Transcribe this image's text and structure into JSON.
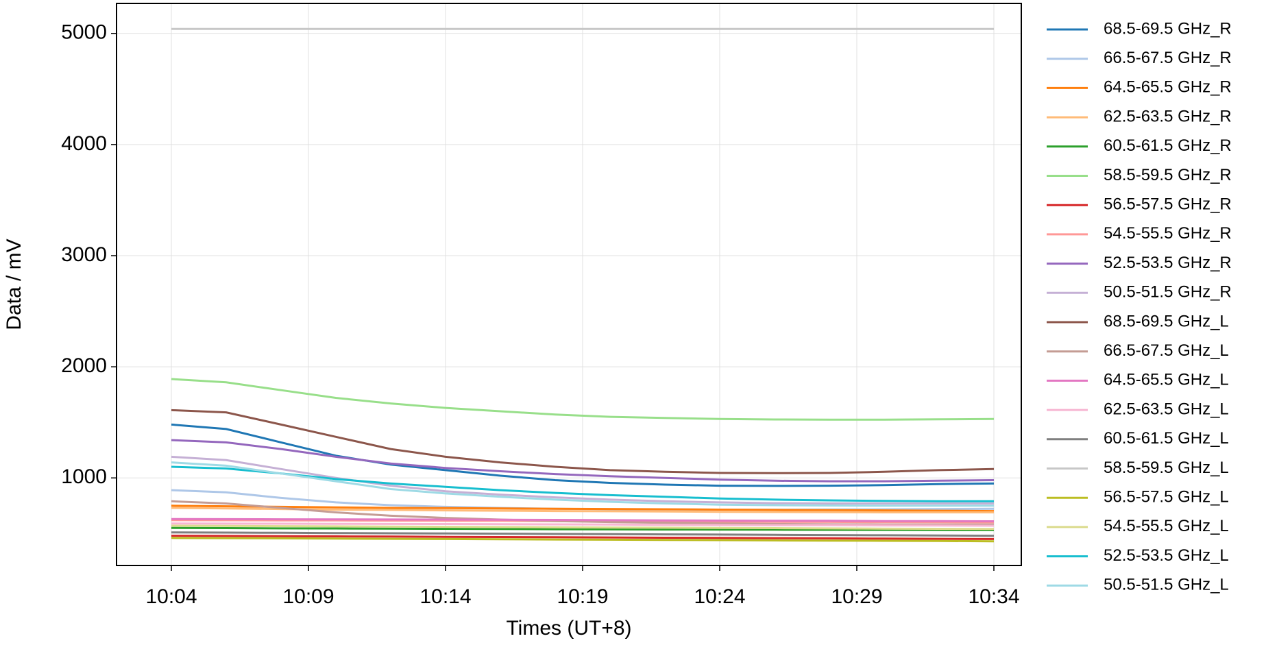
{
  "chart_data": {
    "type": "line",
    "xlabel": "Times (UT+8)",
    "ylabel": "Data / mV",
    "x": [
      "10:04",
      "10:06",
      "10:08",
      "10:10",
      "10:12",
      "10:14",
      "10:16",
      "10:18",
      "10:20",
      "10:22",
      "10:24",
      "10:26",
      "10:28",
      "10:30",
      "10:32",
      "10:34"
    ],
    "xlim": [
      "10:02",
      "10:35"
    ],
    "xticks": [
      "10:04",
      "10:09",
      "10:14",
      "10:19",
      "10:24",
      "10:29",
      "10:34"
    ],
    "ylim": [
      212,
      5270
    ],
    "yticks": [
      1000,
      2000,
      3000,
      4000,
      5000
    ],
    "grid": true,
    "legend": "outside right",
    "series": [
      {
        "name": "68.5-69.5 GHz_R",
        "color": "#1f77b4",
        "values": [
          1480,
          1440,
          1320,
          1200,
          1120,
          1070,
          1020,
          980,
          955,
          940,
          930,
          928,
          930,
          935,
          945,
          950
        ]
      },
      {
        "name": "66.5-67.5 GHz_R",
        "color": "#aec7e8",
        "values": [
          890,
          870,
          820,
          780,
          755,
          740,
          730,
          722,
          718,
          716,
          715,
          715,
          716,
          718,
          720,
          722
        ]
      },
      {
        "name": "64.5-65.5 GHz_R",
        "color": "#ff7f0e",
        "values": [
          750,
          745,
          740,
          735,
          730,
          728,
          725,
          722,
          720,
          718,
          715,
          712,
          710,
          708,
          705,
          702
        ]
      },
      {
        "name": "62.5-63.5 GHz_R",
        "color": "#ffbb78",
        "values": [
          730,
          725,
          720,
          715,
          712,
          708,
          705,
          702,
          700,
          698,
          695,
          693,
          692,
          690,
          690,
          690
        ]
      },
      {
        "name": "60.5-61.5 GHz_R",
        "color": "#2ca02c",
        "values": [
          550,
          548,
          546,
          545,
          543,
          542,
          540,
          538,
          537,
          536,
          535,
          534,
          533,
          532,
          531,
          530
        ]
      },
      {
        "name": "58.5-59.5 GHz_R",
        "color": "#98df8a",
        "values": [
          1890,
          1860,
          1790,
          1720,
          1670,
          1630,
          1600,
          1570,
          1550,
          1540,
          1530,
          1526,
          1524,
          1524,
          1527,
          1530
        ]
      },
      {
        "name": "56.5-57.5 GHz_R",
        "color": "#d62728",
        "values": [
          480,
          478,
          476,
          474,
          472,
          470,
          468,
          466,
          464,
          462,
          460,
          458,
          456,
          454,
          452,
          450
        ]
      },
      {
        "name": "54.5-55.5 GHz_R",
        "color": "#ff9896",
        "values": [
          620,
          619,
          618,
          617,
          616,
          615,
          614,
          612,
          610,
          608,
          606,
          605,
          604,
          602,
          601,
          600
        ]
      },
      {
        "name": "52.5-53.5 GHz_R",
        "color": "#9467bd",
        "values": [
          1340,
          1320,
          1260,
          1190,
          1130,
          1090,
          1060,
          1035,
          1015,
          1000,
          985,
          975,
          970,
          970,
          975,
          980
        ]
      },
      {
        "name": "50.5-51.5 GHz_R",
        "color": "#c5b0d5",
        "values": [
          1190,
          1160,
          1080,
          1000,
          930,
          880,
          850,
          825,
          805,
          790,
          780,
          773,
          770,
          770,
          770,
          770
        ]
      },
      {
        "name": "68.5-69.5 GHz_L",
        "color": "#8c564b",
        "values": [
          1610,
          1590,
          1480,
          1370,
          1260,
          1190,
          1140,
          1100,
          1070,
          1055,
          1045,
          1043,
          1045,
          1055,
          1070,
          1080
        ]
      },
      {
        "name": "66.5-67.5 GHz_L",
        "color": "#c49c94",
        "values": [
          790,
          770,
          730,
          690,
          660,
          640,
          625,
          612,
          603,
          596,
          590,
          586,
          583,
          581,
          580,
          580
        ]
      },
      {
        "name": "64.5-65.5 GHz_L",
        "color": "#e377c2",
        "values": [
          630,
          629,
          628,
          627,
          626,
          625,
          624,
          622,
          620,
          618,
          616,
          615,
          614,
          612,
          611,
          610
        ]
      },
      {
        "name": "62.5-63.5 GHz_L",
        "color": "#f7b6d2",
        "values": [
          590,
          589,
          588,
          587,
          586,
          585,
          584,
          582,
          580,
          578,
          576,
          575,
          574,
          572,
          571,
          570
        ]
      },
      {
        "name": "60.5-61.5 GHz_L",
        "color": "#7f7f7f",
        "values": [
          510,
          508,
          506,
          504,
          502,
          500,
          498,
          496,
          494,
          492,
          490,
          488,
          486,
          484,
          482,
          480
        ]
      },
      {
        "name": "58.5-59.5 GHz_L",
        "color": "#c7c7c7",
        "values": [
          5040,
          5040,
          5040,
          5040,
          5040,
          5040,
          5040,
          5040,
          5040,
          5040,
          5040,
          5040,
          5040,
          5040,
          5040,
          5040
        ]
      },
      {
        "name": "56.5-57.5 GHz_L",
        "color": "#bcbd22",
        "values": [
          460,
          458,
          456,
          454,
          452,
          450,
          448,
          446,
          444,
          442,
          440,
          438,
          436,
          434,
          432,
          430
        ]
      },
      {
        "name": "54.5-55.5 GHz_L",
        "color": "#dbdb8d",
        "values": [
          570,
          568,
          566,
          564,
          562,
          560,
          558,
          556,
          554,
          552,
          550,
          548,
          546,
          544,
          542,
          540
        ]
      },
      {
        "name": "52.5-53.5 GHz_L",
        "color": "#17becf",
        "values": [
          1100,
          1085,
          1040,
          990,
          950,
          920,
          890,
          865,
          845,
          830,
          815,
          805,
          798,
          793,
          790,
          790
        ]
      },
      {
        "name": "50.5-51.5 GHz_L",
        "color": "#9edae5",
        "values": [
          1140,
          1110,
          1040,
          970,
          900,
          860,
          830,
          805,
          785,
          770,
          760,
          755,
          752,
          750,
          750,
          750
        ]
      }
    ]
  }
}
